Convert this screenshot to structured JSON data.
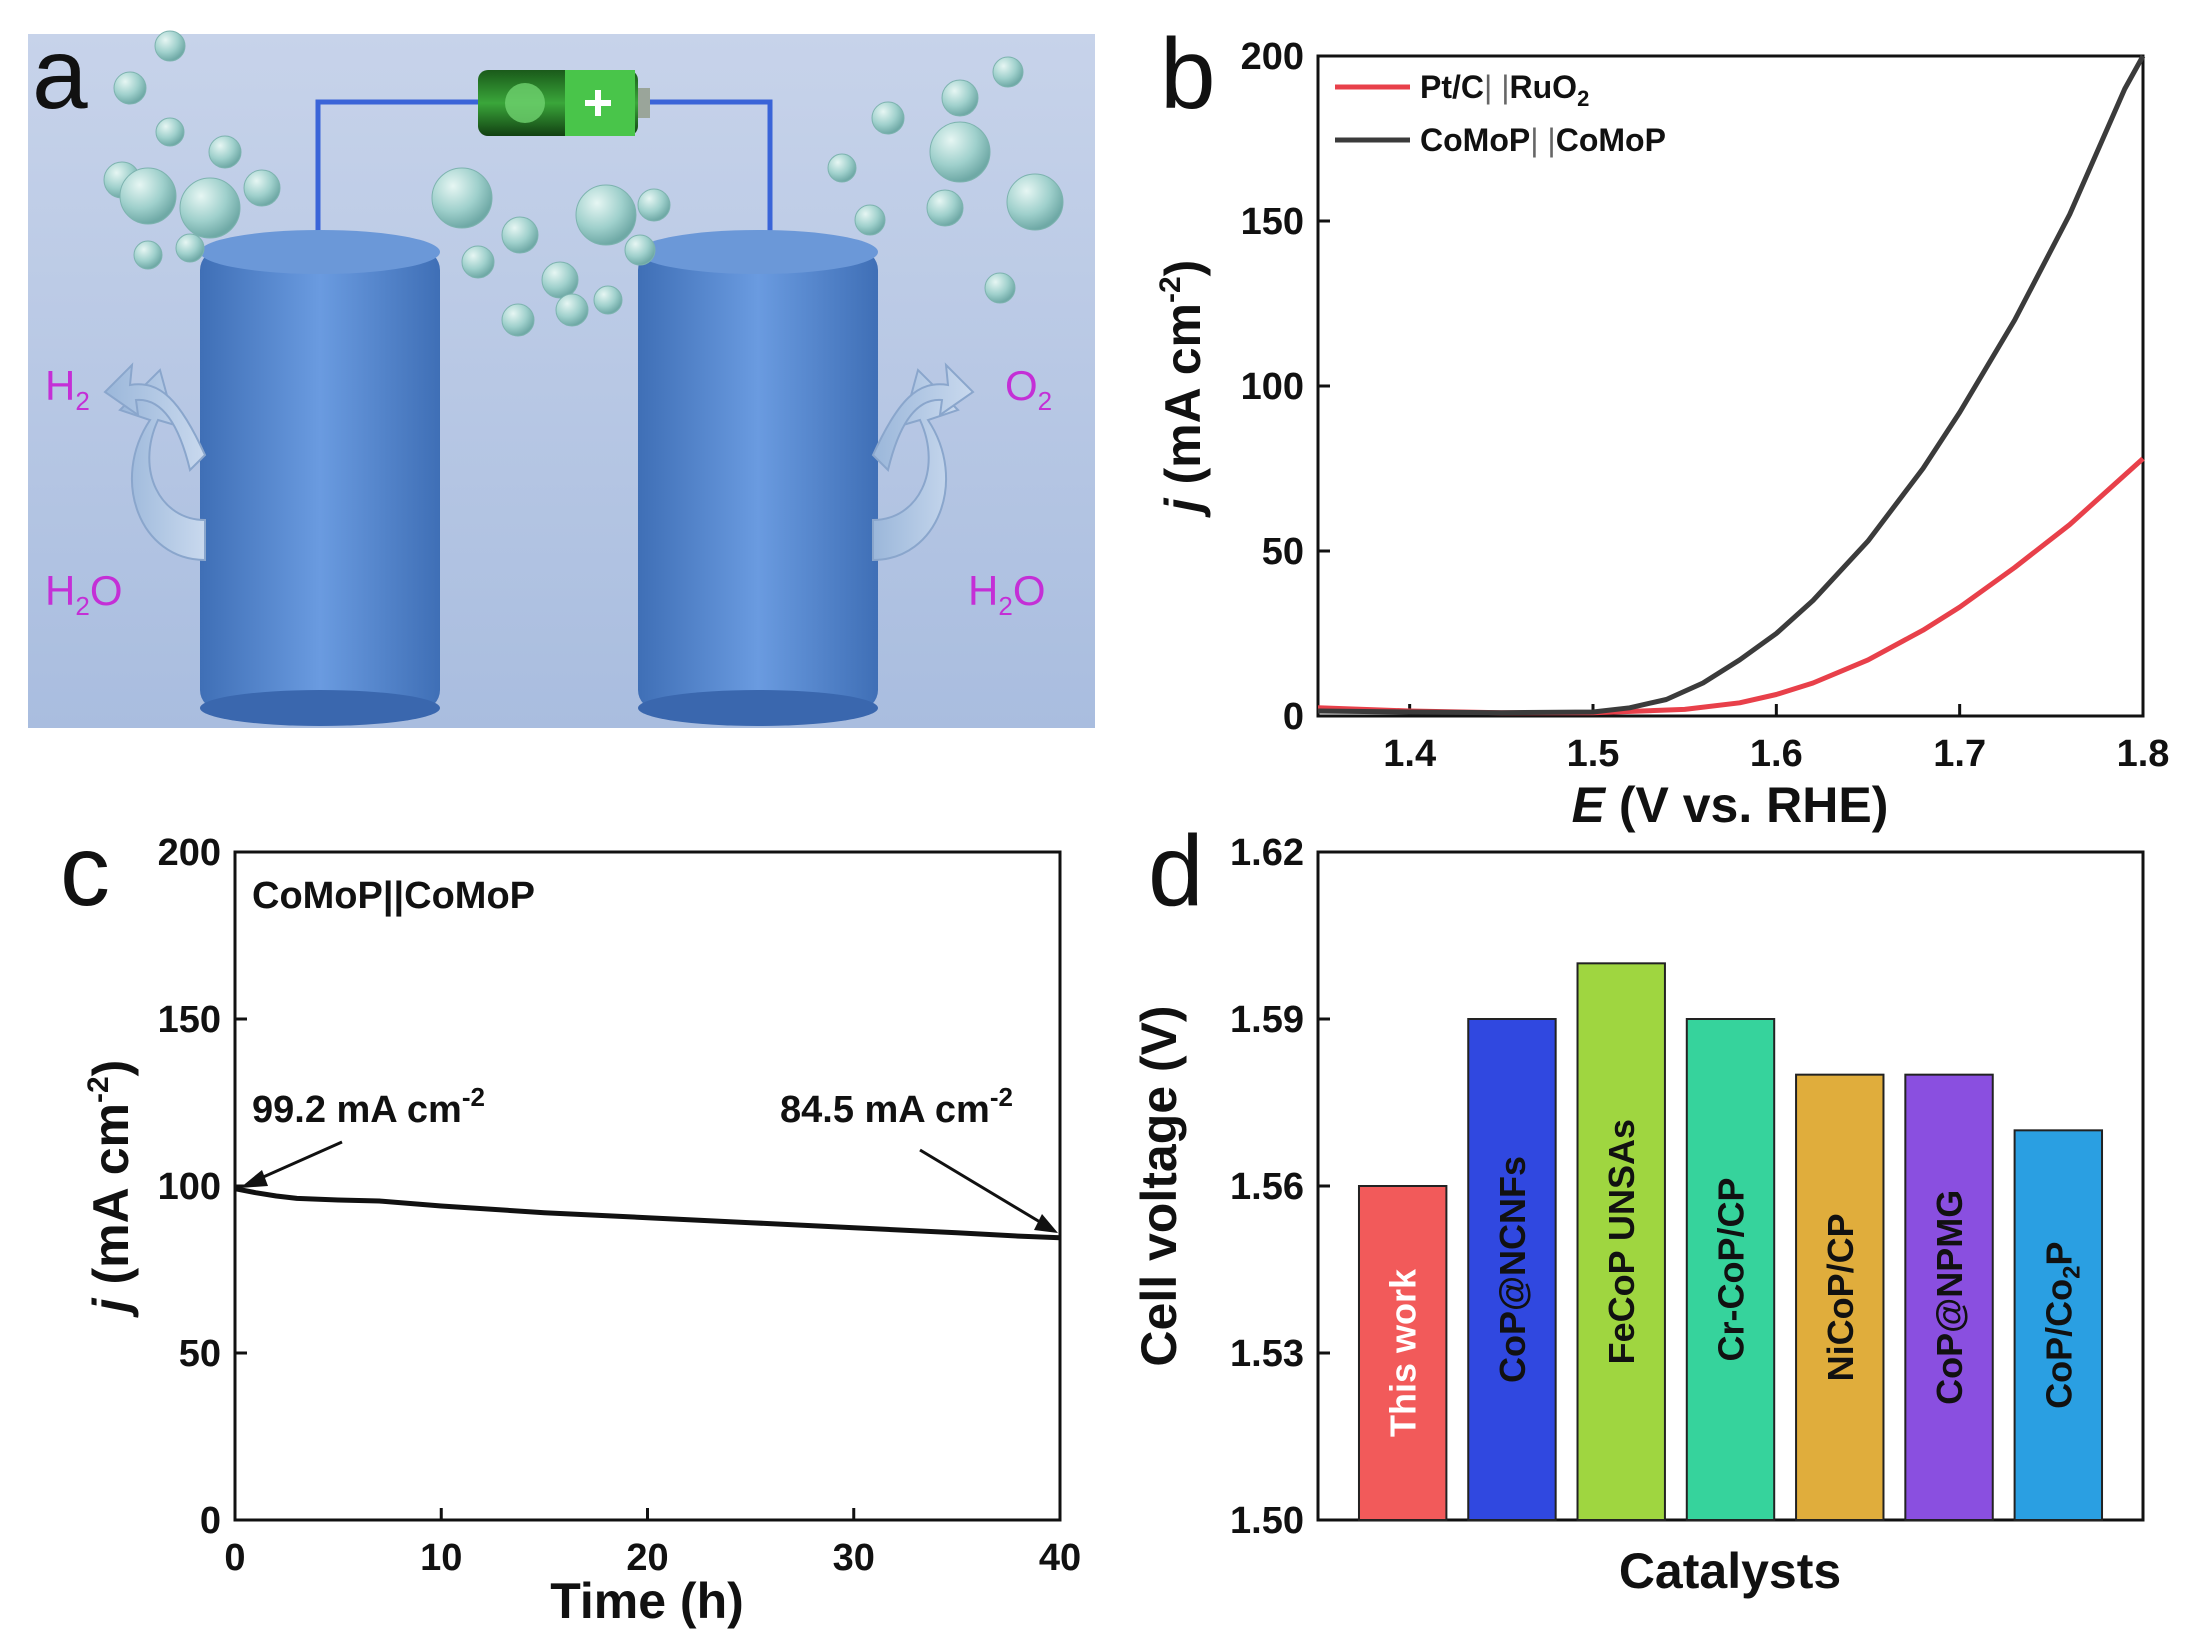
{
  "panels": {
    "a": {
      "label": "a",
      "h2": "H",
      "h2_sub": "2",
      "o2": "O",
      "o2_sub": "2",
      "h2o_left": "H",
      "h2o_left_sub": "2",
      "h2o_left_o": "O",
      "h2o_right": "H",
      "h2o_right_sub": "2",
      "h2o_right_o": "O"
    },
    "b": {
      "label": "b"
    },
    "c": {
      "label": "c",
      "annot_sample": "CoMoP||CoMoP",
      "annot_start": "99.2 mA cm",
      "annot_end": "84.5 mA cm",
      "annot_exp": "-2"
    },
    "d": {
      "label": "d"
    }
  },
  "colors": {
    "red": "#e8404a",
    "dark": "#3b3b3b",
    "black": "#111111",
    "bg_a": "#b6c7e4",
    "mol": "#c42fd6"
  },
  "chart_data": [
    {
      "id": "b",
      "type": "line",
      "xlabel": "E (V vs. RHE)",
      "xlabel_italic": "E",
      "xlabel_rest": " (V vs. RHE)",
      "ylabel": "j (mA cm-2)",
      "ylabel_italic": "j",
      "ylabel_rest": " (mA cm",
      "ylabel_exp": "-2",
      "ylabel_close": ")",
      "xlim": [
        1.35,
        1.8
      ],
      "ylim": [
        0,
        200
      ],
      "xticks": [
        "1.4",
        "1.5",
        "1.6",
        "1.7",
        "1.8"
      ],
      "yticks": [
        "0",
        "50",
        "100",
        "150",
        "200"
      ],
      "legend_position": "top-left",
      "series": [
        {
          "name": "Pt/C||RuO2",
          "name_main": "Pt/C",
          "name_sep": "| |",
          "name_tail": "RuO",
          "name_sub": "2",
          "color": "#e8404a",
          "x": [
            1.35,
            1.4,
            1.45,
            1.5,
            1.55,
            1.58,
            1.6,
            1.62,
            1.65,
            1.68,
            1.7,
            1.73,
            1.76,
            1.8
          ],
          "y": [
            2.5,
            1.5,
            1.0,
            1.0,
            2.0,
            4.0,
            6.5,
            10,
            17,
            26,
            33,
            45,
            58,
            78
          ]
        },
        {
          "name": "CoMoP||CoMoP",
          "name_main": "CoMoP",
          "name_sep": "| |",
          "name_tail": "CoMoP",
          "name_sub": "",
          "color": "#3b3b3b",
          "x": [
            1.35,
            1.4,
            1.45,
            1.5,
            1.52,
            1.54,
            1.56,
            1.58,
            1.6,
            1.62,
            1.65,
            1.68,
            1.7,
            1.73,
            1.76,
            1.79,
            1.8
          ],
          "y": [
            1.5,
            1.2,
            1.0,
            1.2,
            2.5,
            5,
            10,
            17,
            25,
            35,
            53,
            75,
            92,
            120,
            152,
            190,
            200
          ]
        }
      ]
    },
    {
      "id": "c",
      "type": "line",
      "xlabel": "Time (h)",
      "ylabel": "j (mA cm-2)",
      "ylabel_italic": "j",
      "ylabel_rest": " (mA cm",
      "ylabel_exp": "-2",
      "ylabel_close": ")",
      "xlim": [
        0,
        40
      ],
      "ylim": [
        0,
        200
      ],
      "xticks": [
        "0",
        "10",
        "20",
        "30",
        "40"
      ],
      "yticks": [
        "0",
        "50",
        "100",
        "150",
        "200"
      ],
      "series": [
        {
          "name": "CoMoP||CoMoP",
          "color": "#111111",
          "x": [
            0,
            1,
            2,
            3,
            5,
            7,
            10,
            15,
            20,
            25,
            30,
            35,
            38,
            40
          ],
          "y": [
            99.2,
            98.0,
            97.0,
            96.3,
            95.8,
            95.5,
            94.0,
            92.0,
            90.5,
            89.0,
            87.5,
            86.0,
            85.0,
            84.5
          ]
        }
      ]
    },
    {
      "id": "d",
      "type": "bar",
      "xlabel": "Catalysts",
      "ylabel": "Cell voltage (V)",
      "ylim": [
        1.5,
        1.62
      ],
      "yticks": [
        "1.50",
        "1.53",
        "1.56",
        "1.59",
        "1.62"
      ],
      "categories": [
        "This work",
        "CoP@NCNFs",
        "FeCoP UNSAs",
        "Cr-CoP/CP",
        "NiCoP/CP",
        "CoP@NPMG",
        "CoP/Co2P"
      ],
      "category_parts": [
        [
          "This work",
          ""
        ],
        [
          "CoP@NCNFs",
          ""
        ],
        [
          "FeCoP UNSAs",
          ""
        ],
        [
          "Cr-CoP/CP",
          ""
        ],
        [
          "NiCoP/CP",
          ""
        ],
        [
          "CoP@NPMG",
          ""
        ],
        [
          "CoP/Co",
          "2",
          "P"
        ]
      ],
      "values": [
        1.56,
        1.59,
        1.6,
        1.59,
        1.58,
        1.58,
        1.57
      ],
      "bar_colors": [
        "#f25a5a",
        "#3048e0",
        "#9fd640",
        "#36d39c",
        "#e0ad3c",
        "#8a4fe0",
        "#2a9fe2"
      ],
      "label_colors": [
        "#ffffff",
        "#111111",
        "#111111",
        "#111111",
        "#111111",
        "#111111",
        "#111111"
      ]
    }
  ]
}
